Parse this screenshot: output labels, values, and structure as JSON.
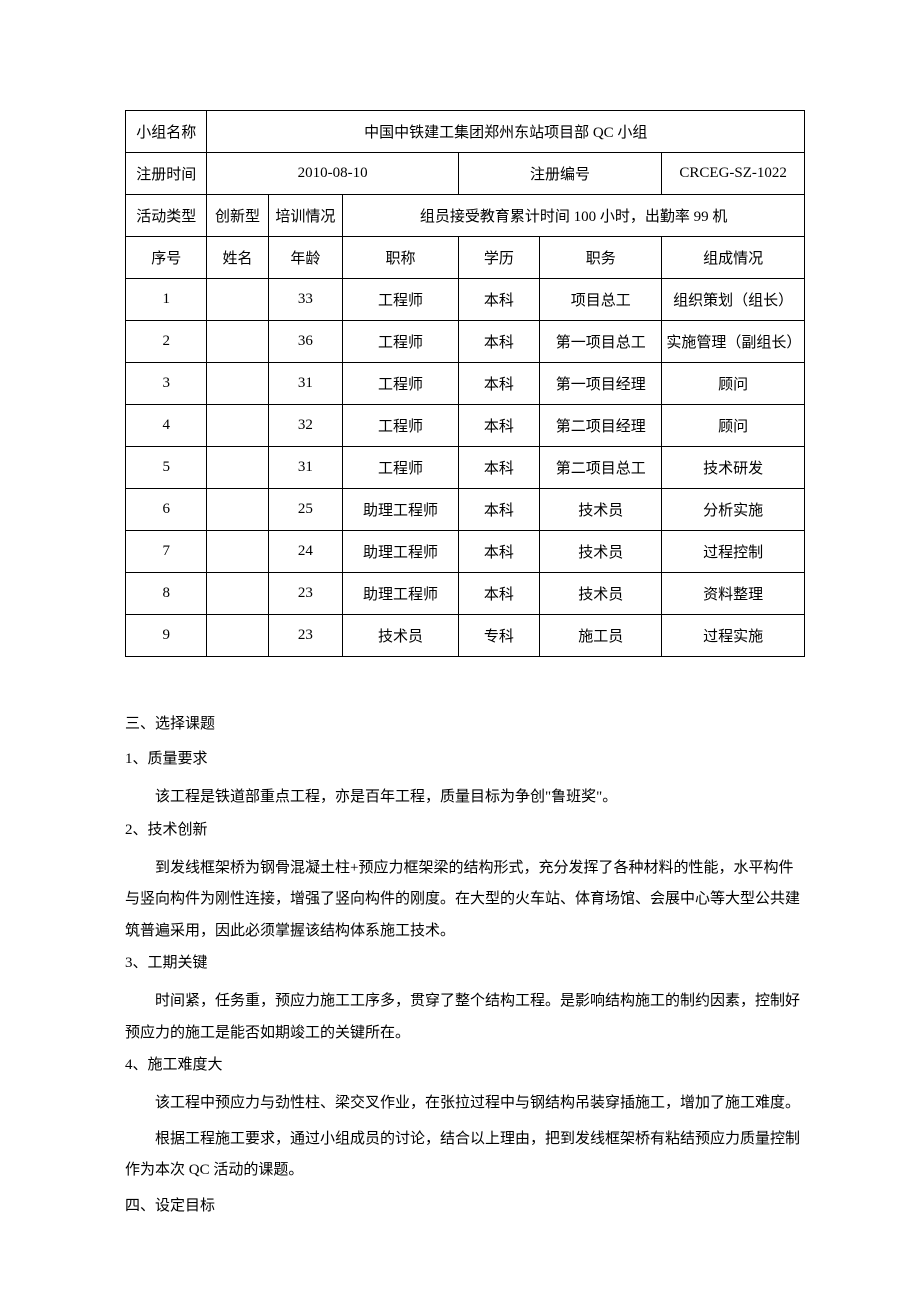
{
  "table": {
    "header_rows": {
      "group_name_label": "小组名称",
      "group_name_value": "中国中铁建工集团郑州东站项目部 QC 小组",
      "reg_time_label": "注册时间",
      "reg_time_value": "2010-08-10",
      "reg_no_label": "注册编号",
      "reg_no_value": "CRCEG-SZ-1022",
      "activity_type_label": "活动类型",
      "activity_type_value": "创新型",
      "training_label": "培训情况",
      "training_value": "组员接受教育累计时间 100 小时，出勤率 99 机"
    },
    "columns": [
      "序号",
      "姓名",
      "年龄",
      "职称",
      "学历",
      "职务",
      "组成情况"
    ],
    "rows": [
      [
        "1",
        "",
        "33",
        "工程师",
        "本科",
        "项目总工",
        "组织策划（组长）"
      ],
      [
        "2",
        "",
        "36",
        "工程师",
        "本科",
        "第一项目总工",
        "实施管理（副组长）"
      ],
      [
        "3",
        "",
        "31",
        "工程师",
        "本科",
        "第一项目经理",
        "顾问"
      ],
      [
        "4",
        "",
        "32",
        "工程师",
        "本科",
        "第二项目经理",
        "顾问"
      ],
      [
        "5",
        "",
        "31",
        "工程师",
        "本科",
        "第二项目总工",
        "技术研发"
      ],
      [
        "6",
        "",
        "25",
        "助理工程师",
        "本科",
        "技术员",
        "分析实施"
      ],
      [
        "7",
        "",
        "24",
        "助理工程师",
        "本科",
        "技术员",
        "过程控制"
      ],
      [
        "8",
        "",
        "23",
        "助理工程师",
        "本科",
        "技术员",
        "资料整理"
      ],
      [
        "9",
        "",
        "23",
        "技术员",
        "专科",
        "施工员",
        "过程实施"
      ]
    ]
  },
  "sections": {
    "s1_title": "三、选择课题",
    "s1_1_label": "1、质量要求",
    "s1_1_body": "该工程是铁道部重点工程，亦是百年工程，质量目标为争创\"鲁班奖\"。",
    "s1_2_label": "2、技术创新",
    "s1_2_body": "到发线框架桥为钢骨混凝土柱+预应力框架梁的结构形式，充分发挥了各种材料的性能，水平构件与竖向构件为刚性连接，增强了竖向构件的刚度。在大型的火车站、体育场馆、会展中心等大型公共建筑普遍采用，因此必须掌握该结构体系施工技术。",
    "s1_3_label": "3、工期关键",
    "s1_3_body": "时间紧，任务重，预应力施工工序多，贯穿了整个结构工程。是影响结构施工的制约因素，控制好预应力的施工是能否如期竣工的关键所在。",
    "s1_4_label": "4、施工难度大",
    "s1_4_body1": "该工程中预应力与劲性柱、梁交叉作业，在张拉过程中与钢结构吊装穿插施工，增加了施工难度。",
    "s1_4_body2": "根据工程施工要求，通过小组成员的讨论，结合以上理由，把到发线框架桥有粘结预应力质量控制作为本次 QC 活动的课题。",
    "s2_title": "四、设定目标"
  },
  "layout": {
    "col_widths": [
      "12%",
      "9%",
      "11%",
      "17%",
      "12%",
      "18%",
      "21%"
    ]
  }
}
